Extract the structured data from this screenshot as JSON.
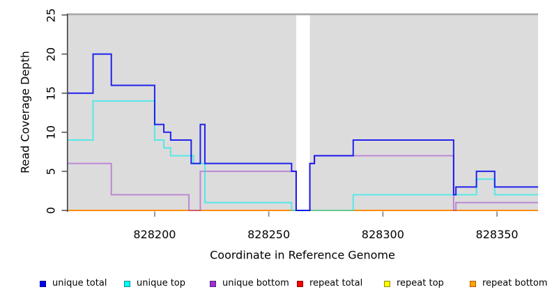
{
  "figure": {
    "background": "#FFFFFF",
    "panel_background": "#DCDCDC",
    "panel_top_border": "#A6A6A6",
    "axis_line_color": "#404040",
    "y_tick_color": "#4A4A4A",
    "x_tick_color": "#8C8C8C",
    "text_color": "#000000"
  },
  "chart_data": {
    "type": "line",
    "subtype": "step",
    "title": "",
    "xlabel": "Coordinate in Reference Genome",
    "ylabel": "Read Coverage Depth",
    "xlim": [
      828162,
      828368
    ],
    "ylim": [
      0,
      25
    ],
    "grid": false,
    "legend_position": "bottom",
    "xticks": [
      {
        "value": 828200,
        "label": "828200"
      },
      {
        "value": 828250,
        "label": "828250"
      },
      {
        "value": 828300,
        "label": "828300"
      },
      {
        "value": 828350,
        "label": "828350"
      }
    ],
    "yticks": [
      {
        "value": 0,
        "label": "0"
      },
      {
        "value": 5,
        "label": "5"
      },
      {
        "value": 10,
        "label": "10"
      },
      {
        "value": 15,
        "label": "15"
      },
      {
        "value": 20,
        "label": "20"
      },
      {
        "value": 25,
        "label": "25"
      }
    ],
    "mask_region": {
      "from": 828262,
      "to": 828268,
      "color": "#FFFFFF"
    },
    "series": [
      {
        "name": "unique total",
        "color": "#0000EE",
        "opacity": 0.85,
        "zorder": 6,
        "points": [
          [
            828162,
            15
          ],
          [
            828173,
            20
          ],
          [
            828181,
            16
          ],
          [
            828200,
            11
          ],
          [
            828204,
            10
          ],
          [
            828207,
            9
          ],
          [
            828216,
            6
          ],
          [
            828220,
            11
          ],
          [
            828222,
            6
          ],
          [
            828260,
            5
          ],
          [
            828262,
            0
          ],
          [
            828268,
            6
          ],
          [
            828270,
            7
          ],
          [
            828287,
            9
          ],
          [
            828331,
            2
          ],
          [
            828332,
            3
          ],
          [
            828341,
            5
          ],
          [
            828349,
            3
          ]
        ]
      },
      {
        "name": "unique top",
        "color": "#00EFEF",
        "opacity": 0.6,
        "zorder": 5,
        "points": [
          [
            828162,
            9
          ],
          [
            828173,
            14
          ],
          [
            828200,
            9
          ],
          [
            828204,
            8
          ],
          [
            828207,
            7
          ],
          [
            828217,
            6
          ],
          [
            828222,
            1
          ],
          [
            828260,
            0
          ],
          [
            828287,
            2
          ],
          [
            828341,
            4
          ],
          [
            828349,
            2
          ]
        ]
      },
      {
        "name": "unique bottom",
        "color": "#9A32CD",
        "opacity": 0.5,
        "zorder": 4,
        "points": [
          [
            828162,
            6
          ],
          [
            828181,
            2
          ],
          [
            828215,
            0
          ],
          [
            828220,
            5
          ],
          [
            828262,
            0
          ],
          [
            828268,
            6
          ],
          [
            828270,
            7
          ],
          [
            828331,
            0
          ],
          [
            828332,
            1
          ]
        ]
      },
      {
        "name": "repeat total",
        "color": "#EE0000",
        "opacity": 1,
        "zorder": 1,
        "points": [
          [
            828162,
            0
          ]
        ]
      },
      {
        "name": "repeat top",
        "color": "#FFFF00",
        "opacity": 1,
        "zorder": 2,
        "points": [
          [
            828162,
            0
          ]
        ]
      },
      {
        "name": "repeat bottom",
        "color": "#FF8C00",
        "opacity": 1,
        "zorder": 3,
        "points": [
          [
            828162,
            0
          ]
        ]
      }
    ]
  },
  "legend": {
    "items": [
      {
        "label": "unique total",
        "fill": "#0000EE",
        "border": "#00008B"
      },
      {
        "label": "unique top",
        "fill": "#00FFFF",
        "border": "#008B8B"
      },
      {
        "label": "unique bottom",
        "fill": "#9A32CD",
        "border": "#551A8B"
      },
      {
        "label": "repeat total",
        "fill": "#FF0000",
        "border": "#8B0000"
      },
      {
        "label": "repeat top",
        "fill": "#FFFF00",
        "border": "#8B8B00"
      },
      {
        "label": "repeat bottom",
        "fill": "#FFA500",
        "border": "#B35900"
      }
    ]
  }
}
